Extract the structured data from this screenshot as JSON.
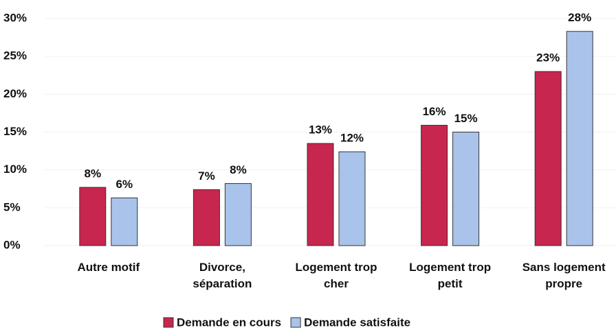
{
  "chart_data": {
    "type": "bar",
    "categories": [
      "Autre motif",
      "Divorce,\nséparation",
      "Logement trop\ncher",
      "Logement trop\npetit",
      "Sans logement\npropre"
    ],
    "series": [
      {
        "name": "Demande en cours",
        "color": "#c7264e",
        "values": [
          7.7,
          7.4,
          13.5,
          15.9,
          23.0
        ],
        "value_labels": [
          "8%",
          "7%",
          "13%",
          "16%",
          "23%"
        ]
      },
      {
        "name": "Demande satisfaite",
        "color": "#a9c3ea",
        "values": [
          6.3,
          8.2,
          12.4,
          15.0,
          28.3
        ],
        "value_labels": [
          "6%",
          "8%",
          "12%",
          "15%",
          "28%"
        ]
      }
    ],
    "ylim": [
      0,
      30
    ],
    "yticks": [
      {
        "value": 0,
        "label": "0%"
      },
      {
        "value": 5,
        "label": "5%"
      },
      {
        "value": 10,
        "label": "10%"
      },
      {
        "value": 15,
        "label": "15%"
      },
      {
        "value": 20,
        "label": "20%"
      },
      {
        "value": 25,
        "label": "25%"
      },
      {
        "value": 30,
        "label": "30%"
      }
    ],
    "grid": true,
    "legend": "bottom"
  }
}
